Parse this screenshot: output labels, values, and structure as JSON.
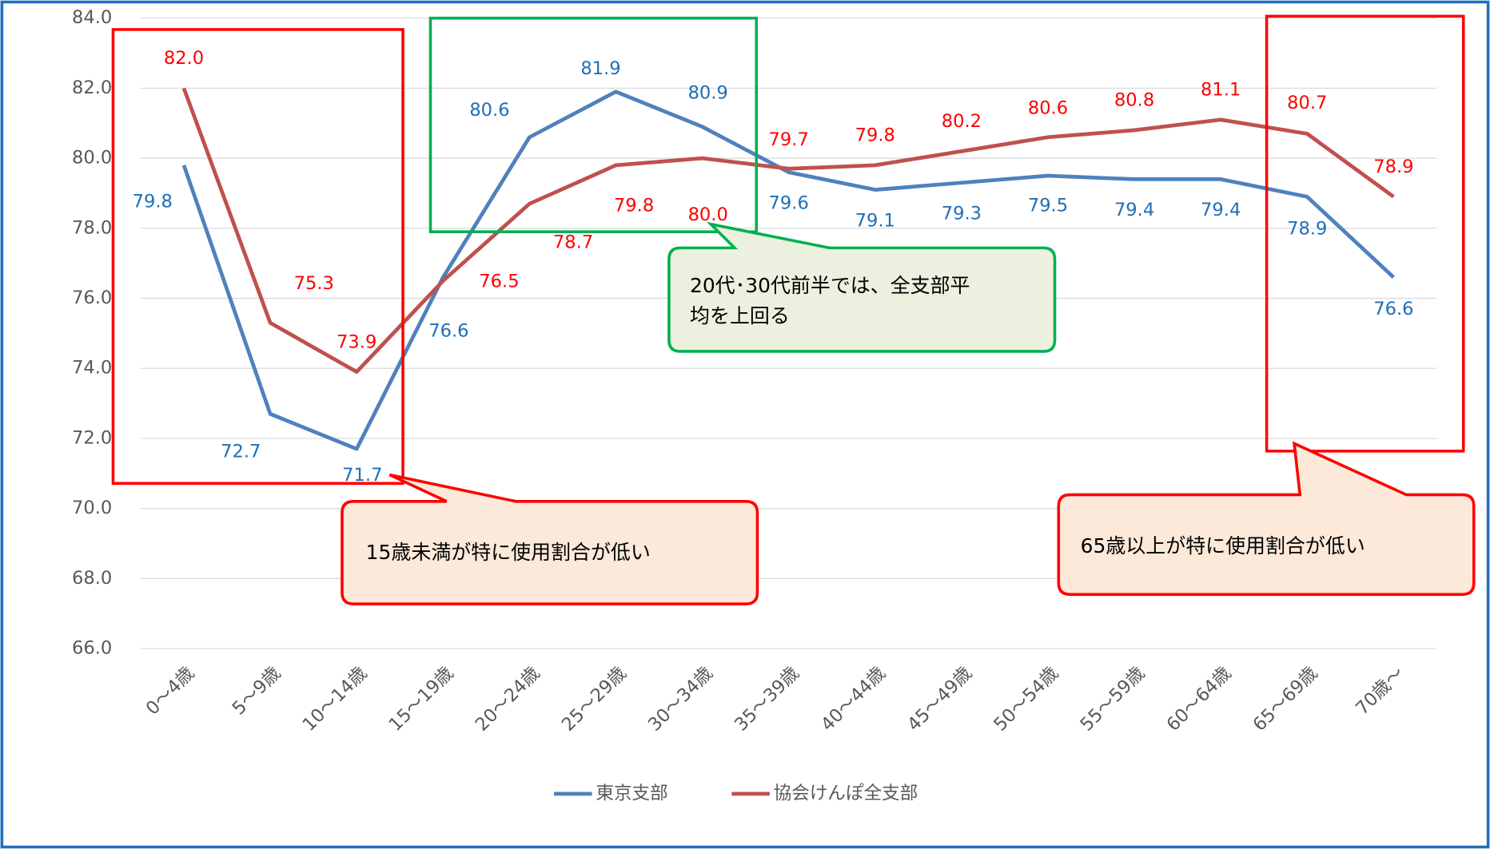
{
  "chart_data": {
    "type": "line",
    "categories": [
      "0～4歳",
      "5～9歳",
      "10～14歳",
      "15～19歳",
      "20～24歳",
      "25～29歳",
      "30～34歳",
      "35～39歳",
      "40～44歳",
      "45～49歳",
      "50～54歳",
      "55～59歳",
      "60～64歳",
      "65～69歳",
      "70歳～"
    ],
    "series": [
      {
        "name": "東京支部",
        "color": "#4f81bd",
        "values": [
          79.8,
          72.7,
          71.7,
          76.6,
          80.6,
          81.9,
          80.9,
          79.6,
          79.1,
          79.3,
          79.5,
          79.4,
          79.4,
          78.9,
          76.6
        ],
        "value_labels": [
          "79.8",
          "72.7",
          "71.7",
          "76.6",
          "80.6",
          "81.9",
          "80.9",
          "79.6",
          "79.1",
          "79.3",
          "79.5",
          "79.4",
          "79.4",
          "78.9",
          "76.6"
        ]
      },
      {
        "name": "協会けんぽ全支部",
        "color": "#c0504d",
        "values": [
          82,
          75.3,
          73.9,
          76.5,
          78.7,
          79.8,
          80,
          79.7,
          79.8,
          80.2,
          80.6,
          80.8,
          81.1,
          80.7,
          78.9
        ],
        "value_labels": [
          "82.0",
          "75.3",
          "73.9",
          "76.5",
          "78.7",
          "79.8",
          "80.0",
          "79.7",
          "79.8",
          "80.2",
          "80.6",
          "80.8",
          "81.1",
          "80.7",
          "78.9"
        ]
      }
    ],
    "ylim": [
      66,
      84
    ],
    "yticks": [
      {
        "value": 66,
        "label": "66.0"
      },
      {
        "value": 68,
        "label": "68.0"
      },
      {
        "value": 70,
        "label": "70.0"
      },
      {
        "value": 72,
        "label": "72.0"
      },
      {
        "value": 74,
        "label": "74.0"
      },
      {
        "value": 76,
        "label": "76.0"
      },
      {
        "value": 78,
        "label": "78.0"
      },
      {
        "value": 80,
        "label": "80.0"
      },
      {
        "value": 82,
        "label": "82.0"
      },
      {
        "value": 84,
        "label": "84.0"
      }
    ],
    "grid": true,
    "legend": "bottom",
    "annotations": [
      "15歳未満が特に使用割合が低い",
      "20代･30代前半では、全支部平",
      "均を上回る",
      "65歳以上が特に使用割合が低い"
    ]
  }
}
